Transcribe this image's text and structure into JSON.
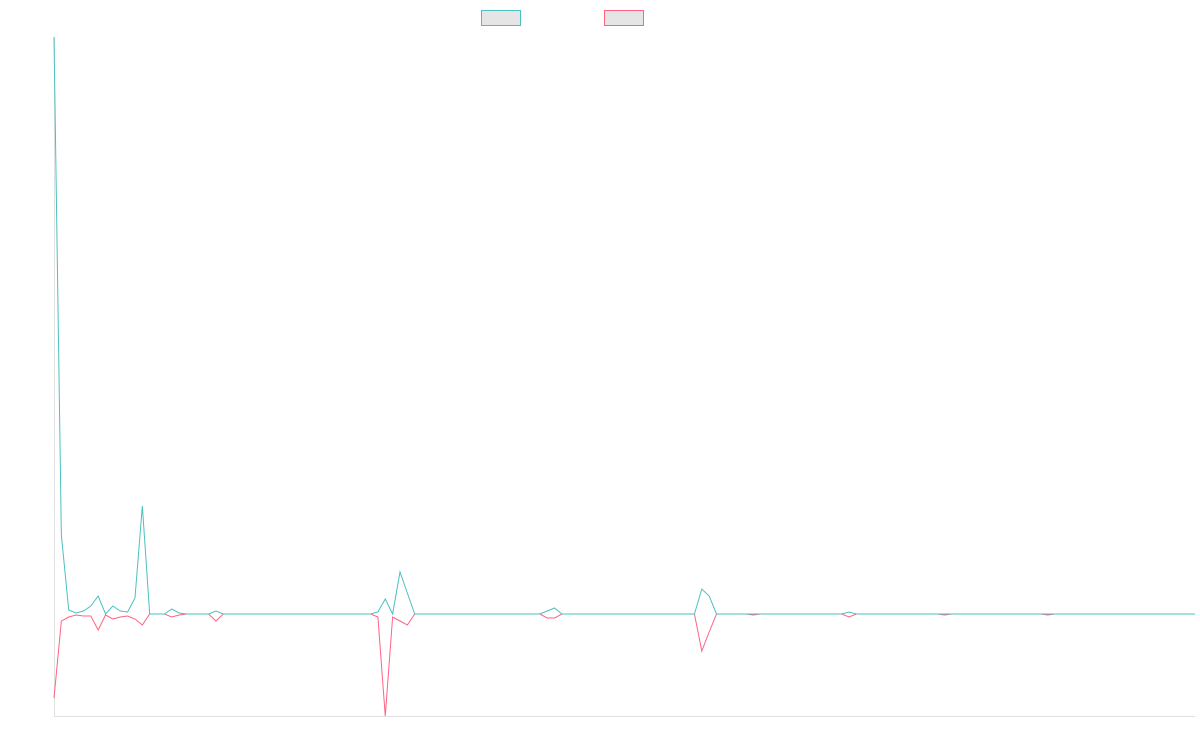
{
  "chart_data": {
    "type": "line",
    "ylim": [
      -102,
      577
    ],
    "legend": "top",
    "series": [
      {
        "color": "#4bc0c0",
        "values": [
          577,
          79,
          4,
          1,
          3,
          8,
          18,
          0,
          8,
          3,
          2,
          16,
          108,
          0,
          0,
          0,
          5,
          1,
          0,
          0,
          0,
          0,
          3,
          0,
          0,
          0,
          0,
          0,
          0,
          0,
          0,
          0,
          0,
          0,
          0,
          0,
          0,
          0,
          0,
          0,
          0,
          0,
          0,
          0,
          2,
          15,
          0,
          42,
          21,
          0,
          0,
          0,
          0,
          0,
          0,
          0,
          0,
          0,
          0,
          0,
          0,
          0,
          0,
          0,
          0,
          0,
          0,
          3,
          6,
          0,
          0,
          0,
          0,
          0,
          0,
          0,
          0,
          0,
          0,
          0,
          0,
          0,
          0,
          0,
          0,
          0,
          0,
          0,
          25,
          18,
          0,
          0,
          0,
          0,
          0,
          0,
          0,
          0,
          0,
          0,
          0,
          0,
          0,
          0,
          0,
          0,
          0,
          0,
          2,
          0,
          0,
          0,
          0,
          0,
          0,
          0,
          0,
          0,
          0,
          0,
          0,
          0,
          0,
          0,
          0,
          0,
          0,
          0,
          0,
          0,
          0,
          0,
          0,
          0,
          0,
          0,
          0,
          0,
          0,
          0,
          0,
          0,
          0,
          0,
          0,
          0,
          0,
          0,
          0,
          0,
          0,
          0,
          0,
          0,
          0,
          0
        ]
      },
      {
        "color": "#ff6384",
        "values": [
          -84,
          -7,
          -3,
          -1,
          -2,
          -2,
          -16,
          -1,
          -5,
          -3,
          -2,
          -5,
          -11,
          0,
          0,
          0,
          -3,
          -1,
          0,
          0,
          0,
          0,
          -7,
          0,
          0,
          0,
          0,
          0,
          0,
          0,
          0,
          0,
          0,
          0,
          0,
          0,
          0,
          0,
          0,
          0,
          0,
          0,
          0,
          0,
          -3,
          -102,
          -3,
          -7,
          -11,
          0,
          0,
          0,
          0,
          0,
          0,
          0,
          0,
          0,
          0,
          0,
          0,
          0,
          0,
          0,
          0,
          0,
          0,
          -4,
          -4,
          0,
          0,
          0,
          0,
          0,
          0,
          0,
          0,
          0,
          0,
          0,
          0,
          0,
          0,
          0,
          0,
          0,
          0,
          0,
          -37,
          -18,
          0,
          0,
          0,
          0,
          0,
          -1,
          0,
          0,
          0,
          0,
          0,
          0,
          0,
          0,
          0,
          0,
          0,
          0,
          -3,
          0,
          0,
          0,
          0,
          0,
          0,
          0,
          0,
          0,
          0,
          0,
          0,
          -1,
          0,
          0,
          0,
          0,
          0,
          0,
          0,
          0,
          0,
          0,
          0,
          0,
          0,
          -1,
          0,
          0,
          0,
          0,
          0,
          0,
          0,
          0,
          0,
          0,
          0,
          0,
          0,
          0,
          0,
          0,
          0,
          0,
          0,
          0
        ]
      }
    ]
  }
}
